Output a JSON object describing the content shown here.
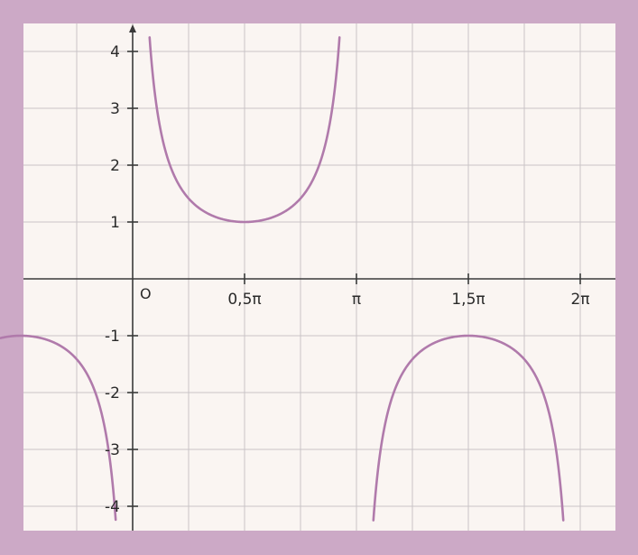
{
  "colors": {
    "frame": "#cca9c6",
    "plot_background": "#faf5f2",
    "grid": "#c9c4c6",
    "axis": "#3a3a3a",
    "curve": "#b07aab"
  },
  "chart_data": {
    "type": "line",
    "function": "csc(x)",
    "xlim": [
      -0.59,
      2.09
    ],
    "ylim": [
      -4.4,
      4.3
    ],
    "grid": true,
    "x_grid_step": 0.25,
    "y_grid_step": 1,
    "origin_label": "O",
    "x_ticks": [
      {
        "value": 0.5,
        "label": "0,5π"
      },
      {
        "value": 1.0,
        "label": "π"
      },
      {
        "value": 1.5,
        "label": "1,5π"
      },
      {
        "value": 2.0,
        "label": "2π"
      }
    ],
    "y_ticks": [
      {
        "value": 4,
        "label": "4"
      },
      {
        "value": 3,
        "label": "3"
      },
      {
        "value": 2,
        "label": "2"
      },
      {
        "value": 1,
        "label": "1"
      },
      {
        "value": -1,
        "label": "-1"
      },
      {
        "value": -2,
        "label": "-2"
      },
      {
        "value": -3,
        "label": "-3"
      },
      {
        "value": -4,
        "label": "-4"
      }
    ],
    "x_unit": "π",
    "segments": [
      {
        "x_from": -0.59,
        "x_to": -0.025
      },
      {
        "x_from": 0.025,
        "x_to": 0.975
      },
      {
        "x_from": 1.025,
        "x_to": 1.975
      }
    ]
  }
}
